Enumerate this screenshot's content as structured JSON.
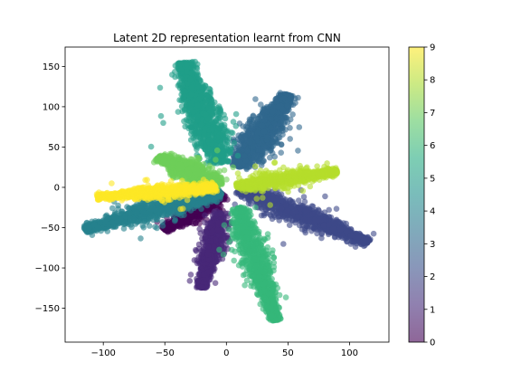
{
  "chart_data": {
    "type": "scatter",
    "title": "Latent 2D representation learnt from CNN",
    "xlabel": "",
    "ylabel": "",
    "xlim": [
      -131,
      132
    ],
    "ylim": [
      -192,
      174
    ],
    "xticks": [
      -100,
      -50,
      0,
      50,
      100
    ],
    "yticks": [
      -150,
      -100,
      -50,
      0,
      50,
      100,
      150
    ],
    "grid": false,
    "marker_alpha": 0.6,
    "colorbar": {
      "label": "",
      "range": [
        0,
        9
      ],
      "ticks": [
        0,
        1,
        2,
        3,
        4,
        5,
        6,
        7,
        8,
        9
      ],
      "colormap": "viridis",
      "stops": [
        "#440154",
        "#472c7a",
        "#3b518b",
        "#2c718e",
        "#21908d",
        "#27ad81",
        "#5cc863",
        "#aadc32",
        "#fde725"
      ]
    },
    "series": [
      {
        "class_value": 0,
        "color": "#440154",
        "points": 820,
        "cluster": {
          "start": [
            -3,
            -8
          ],
          "end": [
            -50,
            -53
          ],
          "spread": 3.5
        }
      },
      {
        "class_value": 1,
        "color": "#482878",
        "points": 800,
        "cluster": {
          "start": [
            -5,
            -30
          ],
          "end": [
            -20,
            -125
          ],
          "spread": 3.5
        }
      },
      {
        "class_value": 2,
        "color": "#3e4a89",
        "points": 1150,
        "cluster": {
          "start": [
            10,
            -2
          ],
          "end": [
            115,
            -68
          ],
          "spread": 4.5
        }
      },
      {
        "class_value": 3,
        "color": "#31688e",
        "points": 1200,
        "cluster": {
          "start": [
            10,
            25
          ],
          "end": [
            50,
            115
          ],
          "spread": 5.5
        }
      },
      {
        "class_value": 4,
        "color": "#26828e",
        "points": 1150,
        "cluster": {
          "start": [
            -5,
            -5
          ],
          "end": [
            -115,
            -52
          ],
          "spread": 4.5
        }
      },
      {
        "class_value": 5,
        "color": "#1f9e89",
        "points": 1200,
        "cluster": {
          "start": [
            -5,
            30
          ],
          "end": [
            -35,
            155
          ],
          "spread": 5.5
        }
      },
      {
        "class_value": 6,
        "color": "#35b779",
        "points": 1150,
        "cluster": {
          "start": [
            10,
            -25
          ],
          "end": [
            40,
            -165
          ],
          "spread": 4.0
        }
      },
      {
        "class_value": 7,
        "color": "#6ece58",
        "points": 800,
        "cluster": {
          "start": [
            -5,
            2
          ],
          "end": [
            -55,
            38
          ],
          "spread": 4.5
        }
      },
      {
        "class_value": 8,
        "color": "#b5de2b",
        "points": 850,
        "cluster": {
          "start": [
            8,
            2
          ],
          "end": [
            90,
            20
          ],
          "spread": 3.5
        }
      },
      {
        "class_value": 9,
        "color": "#fde725",
        "points": 850,
        "cluster": {
          "start": [
            -8,
            0
          ],
          "end": [
            -105,
            -12
          ],
          "spread": 3.0
        }
      }
    ]
  }
}
